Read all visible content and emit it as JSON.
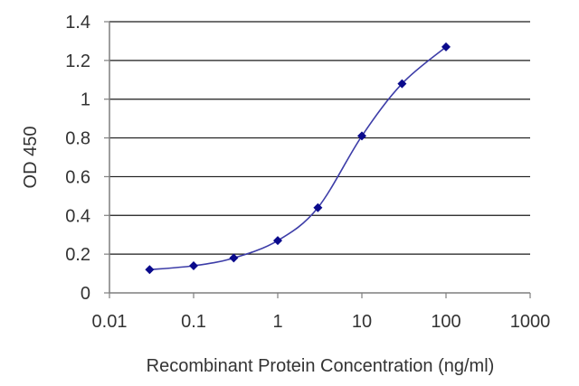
{
  "chart_data": {
    "type": "line",
    "xlabel": "Recombinant Protein Concentration (ng/ml)",
    "ylabel": "OD 450",
    "x_scale": "log",
    "xlim": [
      0.01,
      1000
    ],
    "ylim": [
      0,
      1.4
    ],
    "x_ticks": [
      0.01,
      0.1,
      1,
      10,
      100,
      1000
    ],
    "x_tick_labels": [
      "0.01",
      "0.1",
      "1",
      "10",
      "100",
      "1000"
    ],
    "y_ticks": [
      0,
      0.2,
      0.4,
      0.6,
      0.8,
      1,
      1.2,
      1.4
    ],
    "y_tick_labels": [
      "0",
      "0.2",
      "0.4",
      "0.6",
      "0.8",
      "1",
      "1.2",
      "1.4"
    ],
    "grid": "horizontal",
    "series": [
      {
        "x": [
          0.03,
          0.1,
          0.3,
          1,
          3,
          10,
          30,
          100
        ],
        "y": [
          0.12,
          0.14,
          0.18,
          0.27,
          0.44,
          0.81,
          1.08,
          1.27
        ]
      }
    ],
    "colors": {
      "line": "#3d3da8",
      "marker": "#0a0a8c",
      "grid": "#1a1a1a",
      "axis": "#7f7f7f"
    }
  }
}
